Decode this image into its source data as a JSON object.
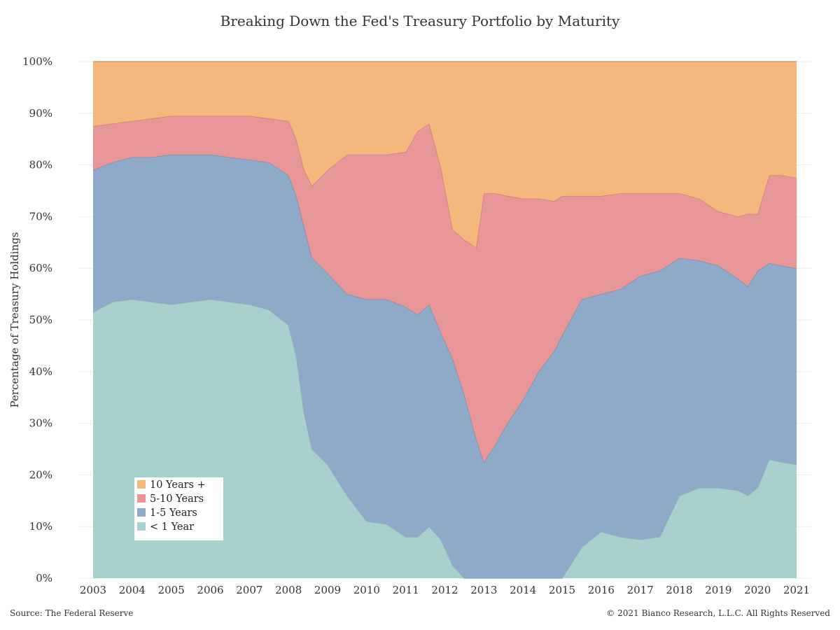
{
  "chart_data": {
    "type": "area",
    "stacked": true,
    "normalized": true,
    "title": "Breaking Down the Fed's Treasury Portfolio by Maturity",
    "ylabel": "Percentage of Treasury Holdings",
    "xlabel": "",
    "ylim": [
      0,
      100
    ],
    "xlim": [
      2003.0,
      2021.0
    ],
    "grid": true,
    "legend_position": "bottom-left",
    "x_ticks": [
      "2003",
      "2004",
      "2005",
      "2006",
      "2007",
      "2008",
      "2009",
      "2010",
      "2011",
      "2012",
      "2013",
      "2014",
      "2015",
      "2016",
      "2017",
      "2018",
      "2019",
      "2020",
      "2021"
    ],
    "y_ticks": [
      "0%",
      "10%",
      "20%",
      "30%",
      "40%",
      "50%",
      "60%",
      "70%",
      "80%",
      "90%",
      "100%"
    ],
    "x": [
      2003.0,
      2003.5,
      2004.0,
      2004.5,
      2005.0,
      2005.5,
      2006.0,
      2006.5,
      2007.0,
      2007.5,
      2008.0,
      2008.2,
      2008.4,
      2008.6,
      2009.0,
      2009.5,
      2010.0,
      2010.5,
      2011.0,
      2011.3,
      2011.6,
      2011.9,
      2012.2,
      2012.5,
      2012.8,
      2013.0,
      2013.3,
      2013.6,
      2014.0,
      2014.4,
      2014.8,
      2015.0,
      2015.5,
      2016.0,
      2016.5,
      2017.0,
      2017.5,
      2018.0,
      2018.5,
      2019.0,
      2019.5,
      2019.75,
      2020.0,
      2020.3,
      2020.6,
      2021.0
    ],
    "series": [
      {
        "name": "< 1 Year",
        "color": "#a8d1ce",
        "values": [
          51.5,
          53.5,
          54,
          53.5,
          53,
          53.5,
          54,
          53.5,
          53,
          52,
          49,
          43,
          32,
          25,
          22,
          16,
          11,
          10.5,
          8,
          8,
          10,
          7.5,
          2.5,
          0,
          0,
          0,
          0,
          0,
          0,
          0,
          0,
          0,
          6,
          9,
          8,
          7.5,
          8,
          16,
          17.5,
          17.5,
          17,
          16,
          17.5,
          23,
          22.5,
          22
        ]
      },
      {
        "name": "1-5 Years",
        "color": "#8fa9c8",
        "values": [
          27.5,
          27,
          27.5,
          28,
          29,
          28.5,
          28,
          28,
          28,
          28.5,
          29,
          31,
          36,
          37,
          37,
          39,
          43,
          43.5,
          44.5,
          43,
          43,
          40,
          40,
          35.5,
          27,
          22.5,
          26,
          30,
          34.5,
          40,
          44,
          47,
          48,
          46,
          48,
          51,
          51.5,
          46,
          44,
          43,
          41,
          40.5,
          42,
          38,
          38,
          38
        ]
      },
      {
        "name": "5-10 Years",
        "color": "#e89697",
        "values": [
          8.5,
          7.5,
          7,
          7.5,
          7.5,
          7.5,
          7.5,
          8,
          8.5,
          8.5,
          10.5,
          11,
          11,
          14,
          20,
          27,
          28,
          28,
          30,
          35.5,
          35,
          32,
          25,
          30,
          37,
          52,
          48.5,
          44,
          39,
          33.5,
          29,
          27,
          20,
          19,
          18.5,
          16,
          15,
          12.5,
          12,
          10.5,
          12,
          14,
          11,
          17,
          17.5,
          17.5
        ]
      },
      {
        "name": "10 Years +",
        "color": "#f4b87c",
        "values": [
          12.5,
          12,
          11.5,
          11,
          10.5,
          10.5,
          10.5,
          10.5,
          10.5,
          11,
          11.5,
          15,
          21,
          24,
          21,
          18,
          18,
          18,
          17.5,
          13.5,
          12,
          20.5,
          32.5,
          34.5,
          36,
          25.5,
          25.5,
          26,
          26.5,
          26.5,
          27,
          26,
          26,
          26,
          25.5,
          25.5,
          25.5,
          25.5,
          26.5,
          29,
          30,
          29.5,
          29.5,
          22,
          22,
          22.5
        ]
      }
    ]
  },
  "footer": {
    "source": "Source: The Federal Reserve",
    "copyright": "© 2021 Bianco Research, L.L.C. All Rights Reserved"
  }
}
